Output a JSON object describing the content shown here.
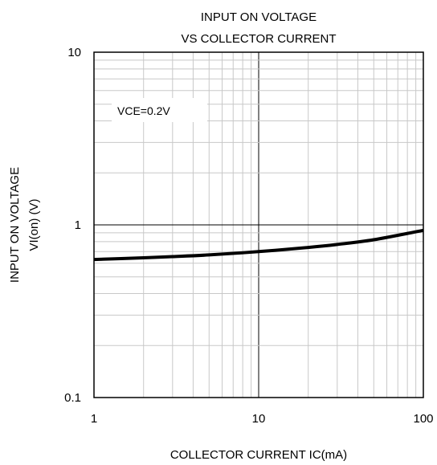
{
  "chart_data": {
    "type": "line",
    "title_lines": [
      "INPUT ON VOLTAGE",
      "VS COLLECTOR CURRENT"
    ],
    "xlabel": "COLLECTOR CURRENT  IC(mA)",
    "ylabel_lines": [
      "INPUT ON VOLTAGE",
      "VI(on) (V)"
    ],
    "x_scale": "log",
    "y_scale": "log",
    "xlim": [
      1,
      100
    ],
    "ylim": [
      0.1,
      10
    ],
    "x_ticks": [
      {
        "value": 1,
        "label": "1"
      },
      {
        "value": 10,
        "label": "10"
      },
      {
        "value": 100,
        "label": "100"
      }
    ],
    "y_ticks": [
      {
        "value": 0.1,
        "label": "0.1"
      },
      {
        "value": 1,
        "label": "1"
      },
      {
        "value": 10,
        "label": "10"
      }
    ],
    "grid": true,
    "annotation": "VCE=0.2V",
    "series": [
      {
        "color": "#000000",
        "x": [
          1,
          2,
          3,
          5,
          10,
          20,
          30,
          50,
          100
        ],
        "y": [
          0.63,
          0.645,
          0.655,
          0.67,
          0.7,
          0.74,
          0.77,
          0.82,
          0.93
        ]
      }
    ]
  }
}
